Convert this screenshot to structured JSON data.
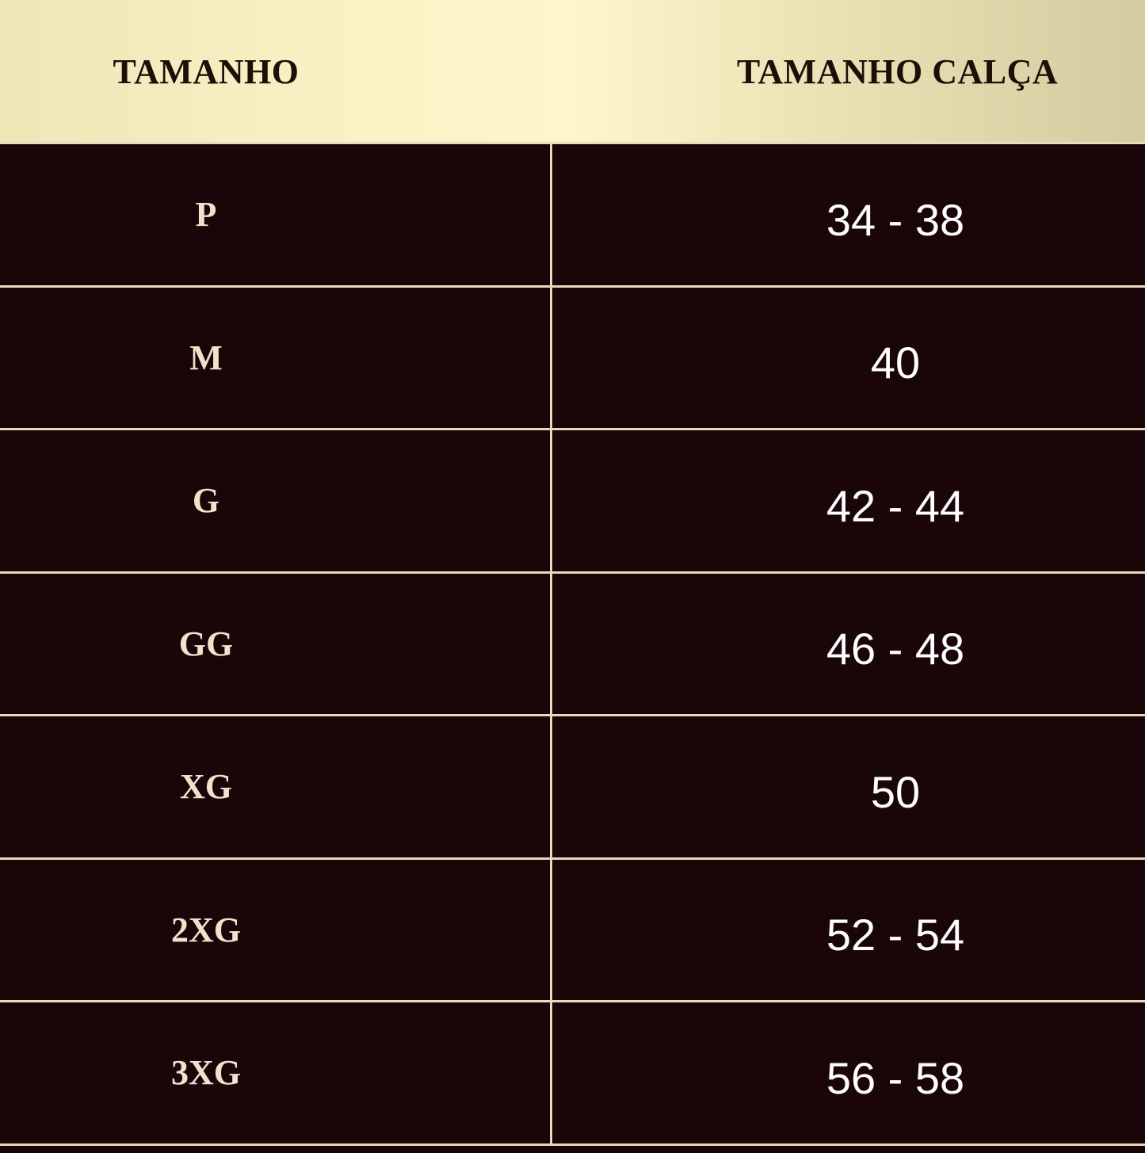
{
  "table": {
    "headers": [
      "TAMANHO",
      "TAMANHO CALÇA"
    ],
    "rows": [
      {
        "size": "P",
        "pants": "34 - 38"
      },
      {
        "size": "M",
        "pants": "40"
      },
      {
        "size": "G",
        "pants": "42 - 44"
      },
      {
        "size": "GG",
        "pants": "46 - 48"
      },
      {
        "size": "XG",
        "pants": "50"
      },
      {
        "size": "2XG",
        "pants": "52 - 54"
      },
      {
        "size": "3XG",
        "pants": "56 - 58"
      }
    ]
  },
  "colors": {
    "background": "#1a0609",
    "header": "#fbf3c6",
    "divider": "#e6d9c0"
  }
}
